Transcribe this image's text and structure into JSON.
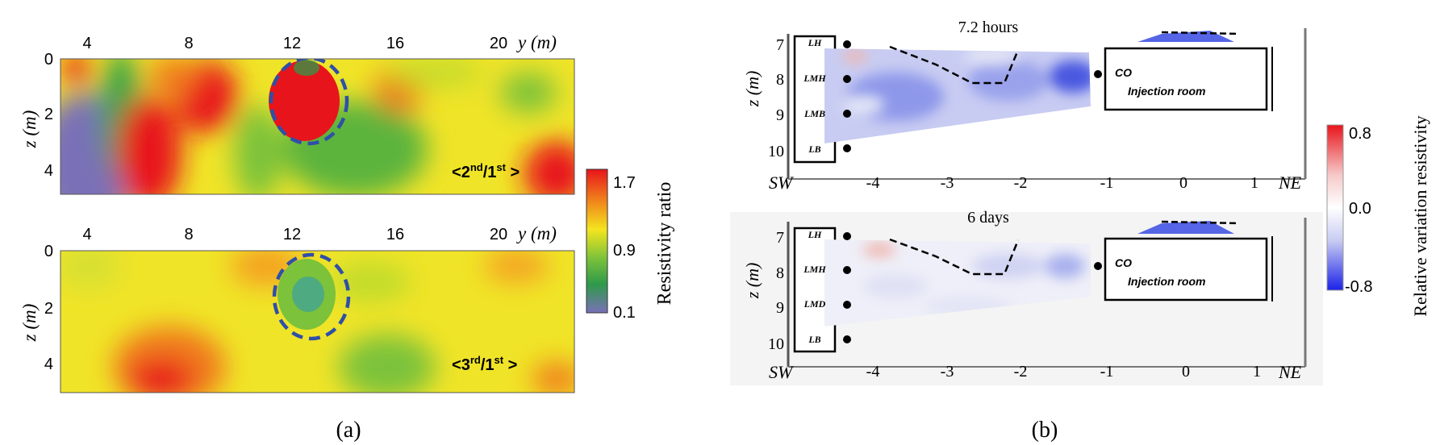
{
  "panel_a": {
    "caption": "(a)",
    "y_ticks": [
      "4",
      "8",
      "12",
      "16",
      "20"
    ],
    "y_axis_label": "y (m)",
    "z_ticks": [
      "0",
      "2",
      "4"
    ],
    "z_axis_label": "z (m)",
    "colorbar": {
      "label": "Resistivity ratio",
      "ticks": [
        "1.7",
        "0.9",
        "0.1"
      ],
      "colors": [
        "#e8141b",
        "#f07a1b",
        "#f4e51f",
        "#7cc23a",
        "#2e9a4a",
        "#7a70b8"
      ]
    },
    "plots": [
      {
        "ratio_label": {
          "pre": "<",
          "n1": "2",
          "s1": "nd",
          "mid": "/",
          "n2": "1",
          "s2": "st",
          "post": " >"
        }
      },
      {
        "ratio_label": {
          "pre": "<",
          "n1": "3",
          "s1": "rd",
          "mid": "/",
          "n2": "1",
          "s2": "st",
          "post": " >"
        }
      }
    ]
  },
  "panel_b": {
    "caption": "(b)",
    "x_ticks": [
      "-4",
      "-3",
      "-2",
      "-1",
      "0",
      "1"
    ],
    "dir_left": "SW",
    "dir_right": "NE",
    "z_ticks": [
      "7",
      "8",
      "9",
      "10"
    ],
    "z_axis_label": "z (m)",
    "layer_labels": [
      "LH",
      "LMH",
      "LMB",
      "LB"
    ],
    "layer_labels_second": [
      "LH",
      "LMH",
      "LMD",
      "LB"
    ],
    "room_labels": [
      "CO",
      "Injection room"
    ],
    "titles": [
      "7.2 hours",
      "6 days"
    ],
    "colorbar": {
      "label": "Relative variation resistivity",
      "ticks": [
        "0.8",
        "0.0",
        "-0.8"
      ],
      "colors": [
        "#e8141b",
        "#f6c8c8",
        "#ffffff",
        "#c8ccf2",
        "#1b22e8"
      ]
    }
  },
  "chart_data": [
    {
      "type": "heatmap",
      "title": "<2nd/1st >",
      "xlabel": "y (m)",
      "ylabel": "z (m)",
      "xlim": [
        2.8,
        22.8
      ],
      "ylim": [
        5,
        0
      ],
      "colorbar": {
        "label": "Resistivity ratio",
        "range": [
          0.1,
          1.7
        ]
      },
      "annotations": [
        "dashed ellipse around high-ratio zone near y=12.5 m, z=0-3 m"
      ]
    },
    {
      "type": "heatmap",
      "title": "<3rd/1st >",
      "xlabel": "y (m)",
      "ylabel": "z (m)",
      "xlim": [
        2.8,
        22.8
      ],
      "ylim": [
        5,
        0
      ],
      "colorbar": {
        "label": "Resistivity ratio",
        "range": [
          0.1,
          1.7
        ]
      },
      "annotations": [
        "dashed ellipse around low-ratio zone near y=12.5 m, z=0-3 m"
      ]
    },
    {
      "type": "heatmap",
      "title": "7.2 hours",
      "xlabel": "SW - NE",
      "ylabel": "z (m)",
      "xlim": [
        -4.6,
        1.4
      ],
      "ylim": [
        10.4,
        6.4
      ],
      "colorbar": {
        "label": "Relative variation resistivity",
        "range": [
          -0.8,
          0.8
        ]
      }
    },
    {
      "type": "heatmap",
      "title": "6 days",
      "xlabel": "SW - NE",
      "ylabel": "z (m)",
      "xlim": [
        -4.6,
        1.4
      ],
      "ylim": [
        10.4,
        6.4
      ],
      "colorbar": {
        "label": "Relative variation resistivity",
        "range": [
          -0.8,
          0.8
        ]
      }
    }
  ]
}
